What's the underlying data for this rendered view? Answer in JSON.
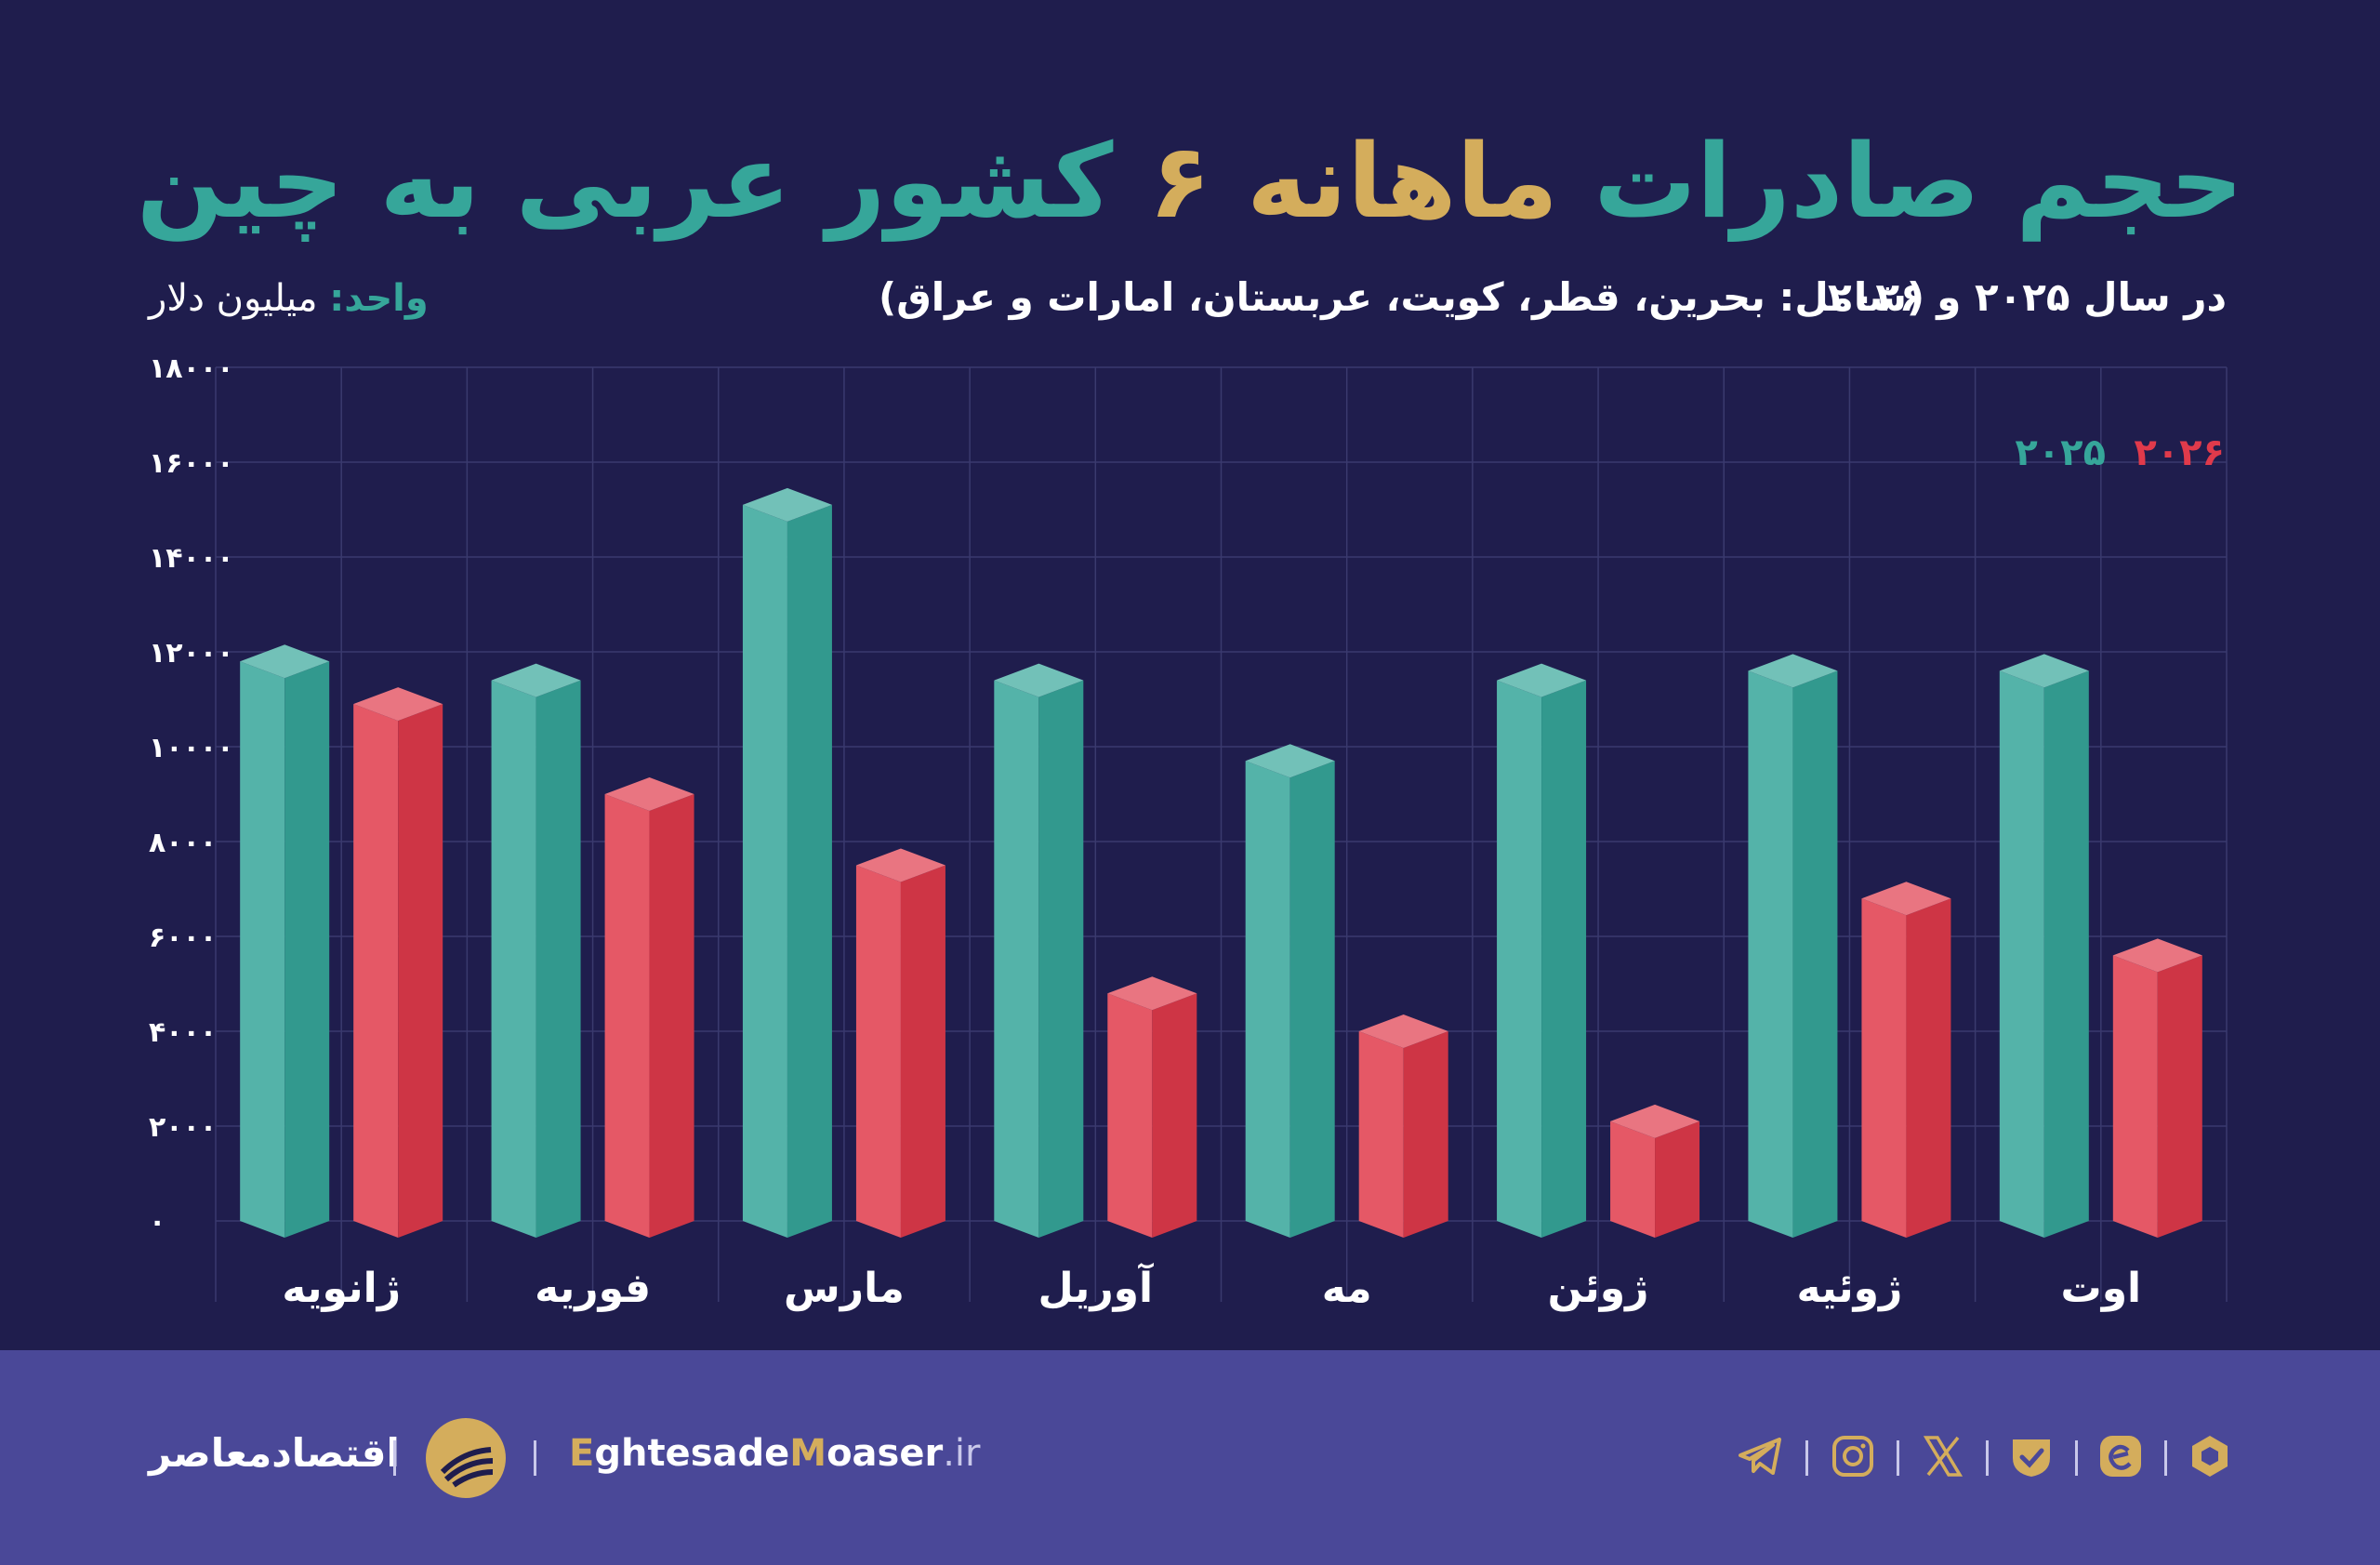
{
  "title": {
    "part1": "حجم صادرات",
    "part2": "ماهانه ۶",
    "part3": "کشور عربی به چین"
  },
  "subtitle_year": "در سال ۲۰۲۵ و ۲۰۲۶",
  "subtitle_countries": "(شامل: بحرین، قطر، کویت، عربستان، امارات و عراق)",
  "unit": {
    "key": "واحد:",
    "value": "میلیون دلار"
  },
  "colors": {
    "background": "#1f1d4d",
    "teal": "#36a69a",
    "red": "#e03a4b",
    "gold": "#d4ad5c",
    "footer": "#4a4898"
  },
  "chart_data": {
    "type": "bar",
    "categories": [
      "ژانویه",
      "فوریه",
      "مارس",
      "آوریل",
      "مه",
      "ژوئن",
      "ژوئیه",
      "اوت"
    ],
    "series": [
      {
        "name": "۲۰۲۵",
        "color": "#36a69a",
        "values": [
          11800,
          11400,
          15100,
          11400,
          9700,
          11400,
          11600,
          11600
        ]
      },
      {
        "name": "۲۰۲۶",
        "color": "#e03a4b",
        "values": [
          10900,
          9000,
          7500,
          4800,
          4000,
          2100,
          6800,
          5600
        ]
      }
    ],
    "yticks": [
      "۰",
      "۲۰۰۰",
      "۴۰۰۰",
      "۶۰۰۰",
      "۸۰۰۰",
      "۱۰۰۰۰",
      "۱۲۰۰۰",
      "۱۴۰۰۰",
      "۱۶۰۰۰",
      "۱۸۰۰۰"
    ],
    "ylim": [
      0,
      18000
    ],
    "grid": true,
    "legend": "top-right"
  },
  "footer": {
    "brand_fa": "اقتصادمعاصر",
    "site_parts": [
      "E",
      "ghtesade",
      "M",
      "oaser",
      ".ir"
    ],
    "social_icons": [
      "telegram-icon",
      "instagram-icon",
      "x-icon",
      "verified-icon",
      "eitaa-icon",
      "rubika-icon"
    ]
  }
}
